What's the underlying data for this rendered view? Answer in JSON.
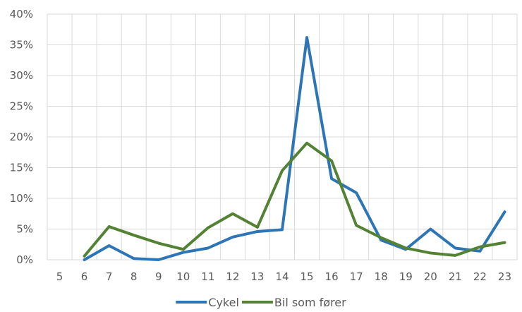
{
  "chart_data": {
    "type": "line",
    "x": [
      "5",
      "6",
      "7",
      "8",
      "9",
      "10",
      "11",
      "12",
      "13",
      "14",
      "15",
      "16",
      "17",
      "18",
      "19",
      "20",
      "21",
      "22",
      "23"
    ],
    "y_ticks": [
      "0%",
      "5%",
      "10%",
      "15%",
      "20%",
      "25%",
      "30%",
      "35%",
      "40%"
    ],
    "ylim": [
      0,
      40
    ],
    "grid": true,
    "legend_position": "bottom",
    "series": [
      {
        "name": "Cykel",
        "color": "#2E75B6",
        "values": [
          null,
          0,
          2.3,
          0.2,
          0,
          1.2,
          1.9,
          3.7,
          4.6,
          4.9,
          36.2,
          13.2,
          10.9,
          3.2,
          1.7,
          5.0,
          1.9,
          1.4,
          7.8
        ]
      },
      {
        "name": "Bil som fører",
        "color": "#548235",
        "values": [
          null,
          0.6,
          5.4,
          4.0,
          2.7,
          1.7,
          5.2,
          7.5,
          5.3,
          14.5,
          19.0,
          16.1,
          5.6,
          3.6,
          1.9,
          1.1,
          0.7,
          2.1,
          2.8
        ]
      }
    ],
    "title": "",
    "xlabel": "",
    "ylabel": ""
  }
}
